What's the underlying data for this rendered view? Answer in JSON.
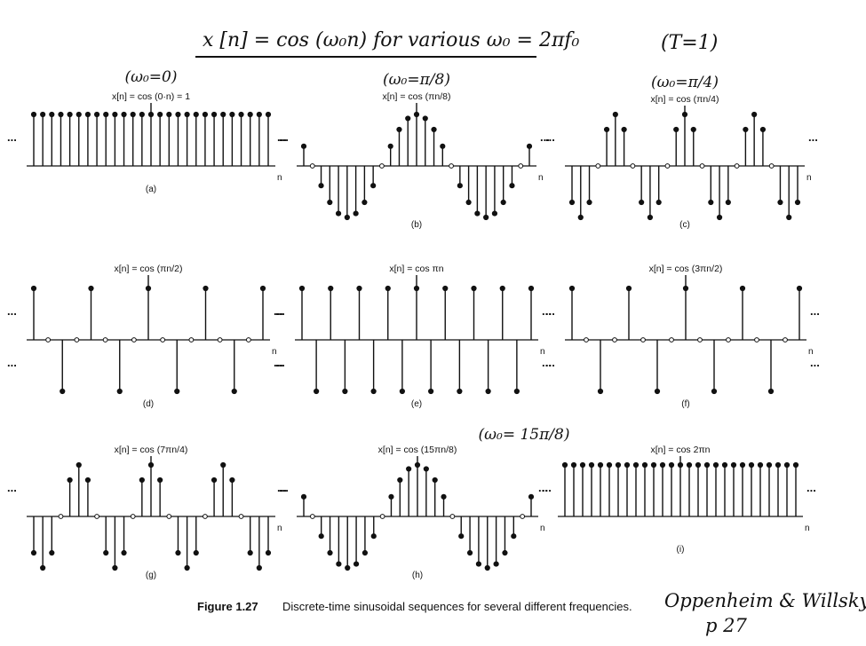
{
  "header": {
    "handwritten_title": "x [n] = cos (ω₀n)  for various  ω₀ = 2πf₀",
    "handwritten_T": "(T=1)"
  },
  "caption": {
    "label": "Figure 1.27",
    "text": "Discrete-time sinusoidal sequences for several different frequencies."
  },
  "attribution": {
    "line1": "Oppenheim & Willsky",
    "line2": "p 27"
  },
  "chart_data": [
    {
      "type": "stem",
      "id": "a",
      "title": "x[n] = cos (0·n) = 1",
      "annotation": "(ω₀=0)",
      "omega_over_pi": 0,
      "panel_label": "(a)",
      "xlabel": "n",
      "ylim": [
        -1,
        1
      ],
      "n_range": [
        -13,
        13
      ]
    },
    {
      "type": "stem",
      "id": "b",
      "title": "x[n] = cos (πn/8)",
      "annotation": "(ω₀=π/8)",
      "omega_over_pi": 0.125,
      "panel_label": "(b)",
      "xlabel": "n",
      "ylim": [
        -1,
        1
      ],
      "n_range": [
        -13,
        13
      ]
    },
    {
      "type": "stem",
      "id": "c",
      "title": "x[n] = cos (πn/4)",
      "annotation": "(ω₀=π/4)",
      "omega_over_pi": 0.25,
      "panel_label": "(c)",
      "xlabel": "n",
      "ylim": [
        -1,
        1
      ],
      "n_range": [
        -13,
        13
      ]
    },
    {
      "type": "stem",
      "id": "d",
      "title": "x[n] = cos (πn/2)",
      "annotation": "",
      "omega_over_pi": 0.5,
      "panel_label": "(d)",
      "xlabel": "n",
      "ylim": [
        -1,
        1
      ],
      "n_range": [
        -8,
        8
      ]
    },
    {
      "type": "stem",
      "id": "e",
      "title": "x[n] = cos πn",
      "annotation": "",
      "omega_over_pi": 1,
      "panel_label": "(e)",
      "xlabel": "n",
      "ylim": [
        -1,
        1
      ],
      "n_range": [
        -8,
        8
      ]
    },
    {
      "type": "stem",
      "id": "f",
      "title": "x[n] = cos (3πn/2)",
      "annotation": "",
      "omega_over_pi": 1.5,
      "panel_label": "(f)",
      "xlabel": "n",
      "ylim": [
        -1,
        1
      ],
      "n_range": [
        -8,
        8
      ]
    },
    {
      "type": "stem",
      "id": "g",
      "title": "x[n] = cos (7πn/4)",
      "annotation": "",
      "omega_over_pi": 1.75,
      "panel_label": "(g)",
      "xlabel": "n",
      "ylim": [
        -1,
        1
      ],
      "n_range": [
        -13,
        13
      ]
    },
    {
      "type": "stem",
      "id": "h",
      "title": "x[n] = cos (15πn/8)",
      "annotation": "(ω₀= 15π/8)",
      "omega_over_pi": 1.875,
      "panel_label": "(h)",
      "xlabel": "n",
      "ylim": [
        -1,
        1
      ],
      "n_range": [
        -13,
        13
      ]
    },
    {
      "type": "stem",
      "id": "i",
      "title": "x[n] = cos 2πn",
      "annotation": "",
      "omega_over_pi": 2,
      "panel_label": "(i)",
      "xlabel": "n",
      "ylim": [
        -1,
        1
      ],
      "n_range": [
        -13,
        13
      ]
    }
  ],
  "ellipsis": "..."
}
